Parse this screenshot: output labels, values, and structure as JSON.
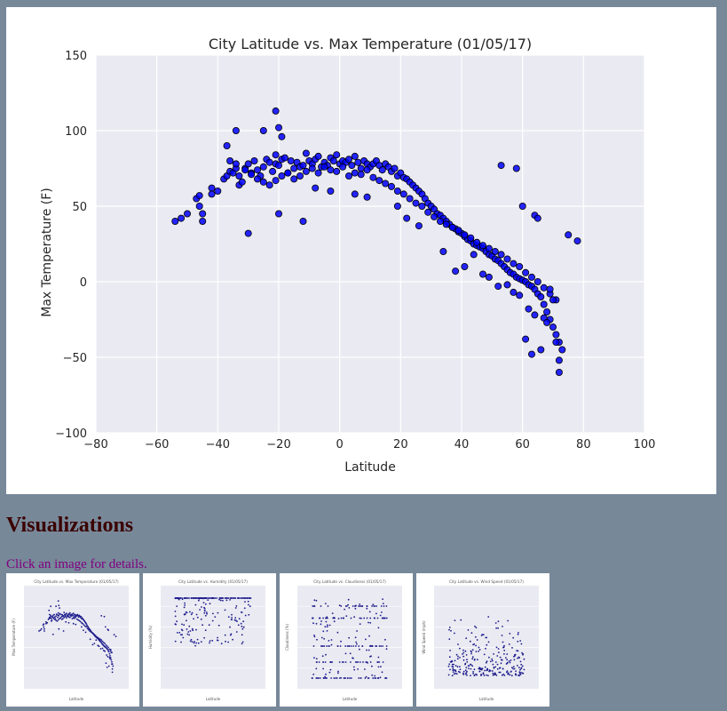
{
  "chart_data": {
    "type": "scatter",
    "title": "City Latitude vs. Max Temperature (01/05/17)",
    "xlabel": "Latitude",
    "ylabel": "Max Temperature (F)",
    "xlim": [
      -80,
      100
    ],
    "ylim": [
      -100,
      150
    ],
    "xticks": [
      -80,
      -60,
      -40,
      -20,
      0,
      20,
      40,
      60,
      80,
      100
    ],
    "yticks": [
      -100,
      -50,
      0,
      50,
      100,
      150
    ],
    "grid": true,
    "colors": {
      "background": "#eaeaf2",
      "grid": "#ffffff",
      "marker": "#0000ff",
      "marker_edge": "#000000"
    },
    "x": [
      -54,
      -52,
      -50,
      -47,
      -46,
      -45,
      -46,
      -42,
      -42,
      -40,
      -38,
      -37,
      -36,
      -35,
      -34,
      -33,
      -33,
      -32,
      -31,
      -30,
      -29,
      -28,
      -27,
      -26,
      -25,
      -24,
      -23,
      -22,
      -21,
      -21,
      -20,
      -19,
      -18,
      -17,
      -16,
      -15,
      -14,
      -13,
      -12,
      -11,
      -10,
      -9,
      -8,
      -7,
      -6,
      -5,
      -4,
      -3,
      -2,
      -1,
      0,
      1,
      2,
      3,
      4,
      5,
      6,
      7,
      8,
      9,
      10,
      11,
      12,
      13,
      14,
      15,
      16,
      17,
      18,
      19,
      20,
      21,
      22,
      23,
      24,
      25,
      26,
      27,
      28,
      29,
      30,
      31,
      32,
      33,
      34,
      35,
      36,
      37,
      38,
      39,
      40,
      41,
      42,
      43,
      44,
      45,
      46,
      47,
      48,
      49,
      50,
      51,
      52,
      53,
      54,
      55,
      56,
      57,
      58,
      59,
      60,
      61,
      62,
      63,
      64,
      65,
      66,
      67,
      68,
      69,
      70,
      71,
      72,
      73,
      -36,
      -34,
      -31,
      -29,
      -27,
      -25,
      -23,
      -21,
      -19,
      -17,
      -15,
      -13,
      -11,
      -9,
      -7,
      -5,
      -3,
      -1,
      1,
      3,
      5,
      7,
      9,
      11,
      13,
      15,
      17,
      19,
      21,
      23,
      25,
      27,
      29,
      31,
      33,
      35,
      37,
      39,
      41,
      43,
      45,
      47,
      49,
      51,
      53,
      55,
      57,
      59,
      61,
      63,
      65,
      67,
      69,
      71,
      -34,
      -25,
      -21,
      -20,
      -19,
      -30,
      -37,
      -12,
      -20,
      -45,
      53,
      58,
      60,
      64,
      65,
      75,
      78,
      69,
      70,
      71,
      72,
      72,
      66,
      63,
      61,
      47,
      49,
      52,
      55,
      57,
      59,
      62,
      64,
      67,
      68,
      34,
      38,
      41,
      44,
      26,
      22,
      19,
      9,
      5,
      -3,
      -8
    ],
    "y": [
      40,
      42,
      45,
      55,
      50,
      45,
      57,
      62,
      58,
      60,
      68,
      70,
      73,
      72,
      75,
      70,
      64,
      66,
      75,
      78,
      72,
      80,
      74,
      70,
      76,
      81,
      79,
      73,
      78,
      84,
      77,
      81,
      82,
      72,
      80,
      75,
      79,
      76,
      77,
      85,
      80,
      78,
      81,
      83,
      76,
      79,
      77,
      82,
      80,
      84,
      78,
      80,
      79,
      81,
      77,
      83,
      79,
      75,
      80,
      78,
      76,
      78,
      80,
      77,
      74,
      78,
      76,
      73,
      75,
      70,
      72,
      69,
      68,
      66,
      64,
      62,
      60,
      58,
      55,
      52,
      50,
      48,
      45,
      44,
      42,
      40,
      38,
      36,
      35,
      33,
      32,
      30,
      28,
      27,
      25,
      24,
      23,
      22,
      20,
      18,
      17,
      15,
      14,
      12,
      10,
      8,
      6,
      5,
      3,
      2,
      1,
      0,
      -2,
      -3,
      -5,
      -8,
      -10,
      -15,
      -20,
      -25,
      -30,
      -35,
      -40,
      -45,
      80,
      78,
      74,
      71,
      68,
      66,
      64,
      67,
      70,
      72,
      68,
      70,
      73,
      75,
      72,
      76,
      74,
      73,
      76,
      70,
      72,
      71,
      74,
      69,
      67,
      65,
      63,
      60,
      58,
      55,
      52,
      50,
      46,
      43,
      40,
      38,
      36,
      34,
      31,
      29,
      26,
      24,
      22,
      20,
      18,
      15,
      12,
      10,
      6,
      3,
      0,
      -4,
      -8,
      -12,
      100,
      100,
      113,
      102,
      96,
      32,
      90,
      40,
      45,
      40,
      77,
      75,
      50,
      44,
      42,
      31,
      27,
      -5,
      -12,
      -40,
      -52,
      -60,
      -45,
      -48,
      -38,
      5,
      3,
      -3,
      -2,
      -7,
      -9,
      -18,
      -22,
      -24,
      -27,
      20,
      7,
      10,
      18,
      37,
      42,
      50,
      56,
      58,
      60,
      62
    ]
  },
  "gallery": {
    "heading": "Visualizations",
    "instructions": "Click an image for details.",
    "thumbnails": [
      {
        "title": "City Latitude vs. Max Temperature (01/05/17)",
        "kind": "temperature",
        "ylabel": "Max Temperature (F)",
        "xlabel": "Latitude"
      },
      {
        "title": "City Latitude vs. Humidity (01/05/17)",
        "kind": "humidity",
        "ylabel": "Humidity (%)",
        "xlabel": "Latitude"
      },
      {
        "title": "City Latitude vs. Cloudiness (01/05/17)",
        "kind": "cloudiness",
        "ylabel": "Cloudiness (%)",
        "xlabel": "Latitude"
      },
      {
        "title": "City Latitude vs. Wind Speed (01/05/17)",
        "kind": "wind",
        "ylabel": "Wind Speed (mph)",
        "xlabel": "Latitude"
      }
    ]
  }
}
